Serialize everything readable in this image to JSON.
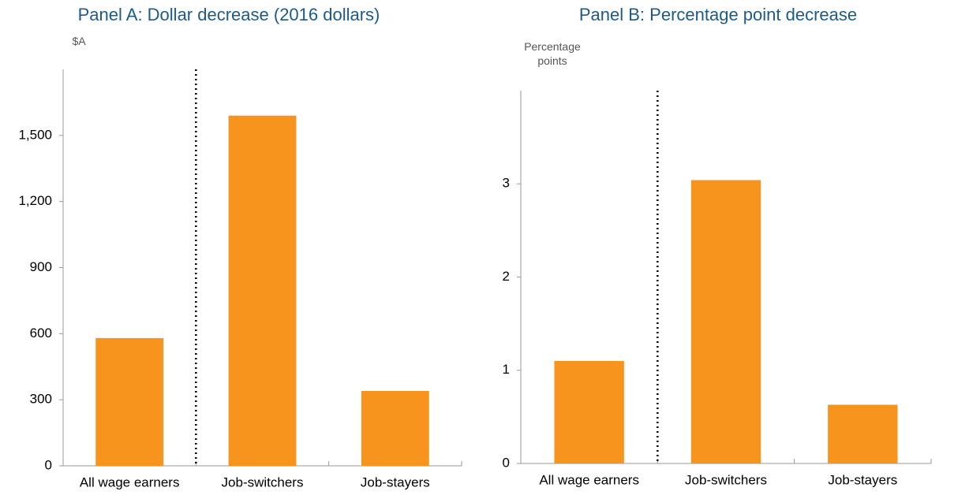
{
  "chart_data": [
    {
      "type": "bar",
      "title": "Panel A: Dollar decrease (2016 dollars)",
      "y_label": "$A",
      "categories": [
        "All wage earners",
        "Job-switchers",
        "Job-stayers"
      ],
      "values": [
        580,
        1590,
        340
      ],
      "color": "#f7941d",
      "ylim": [
        0,
        1800
      ],
      "yticks": [
        0,
        300,
        600,
        900,
        {
          "value": 1200,
          "label": "1,200"
        },
        {
          "value": 1500,
          "label": "1,500"
        }
      ]
    },
    {
      "type": "bar",
      "title": "Panel B: Percentage point decrease",
      "y_label": "Percentage points",
      "categories": [
        "All wage earners",
        "Job-switchers",
        "Job-stayers"
      ],
      "values": [
        1.1,
        3.04,
        0.63
      ],
      "color": "#f7941d",
      "ylim": [
        0,
        4
      ],
      "yticks": [
        0,
        1,
        2,
        3
      ]
    }
  ]
}
